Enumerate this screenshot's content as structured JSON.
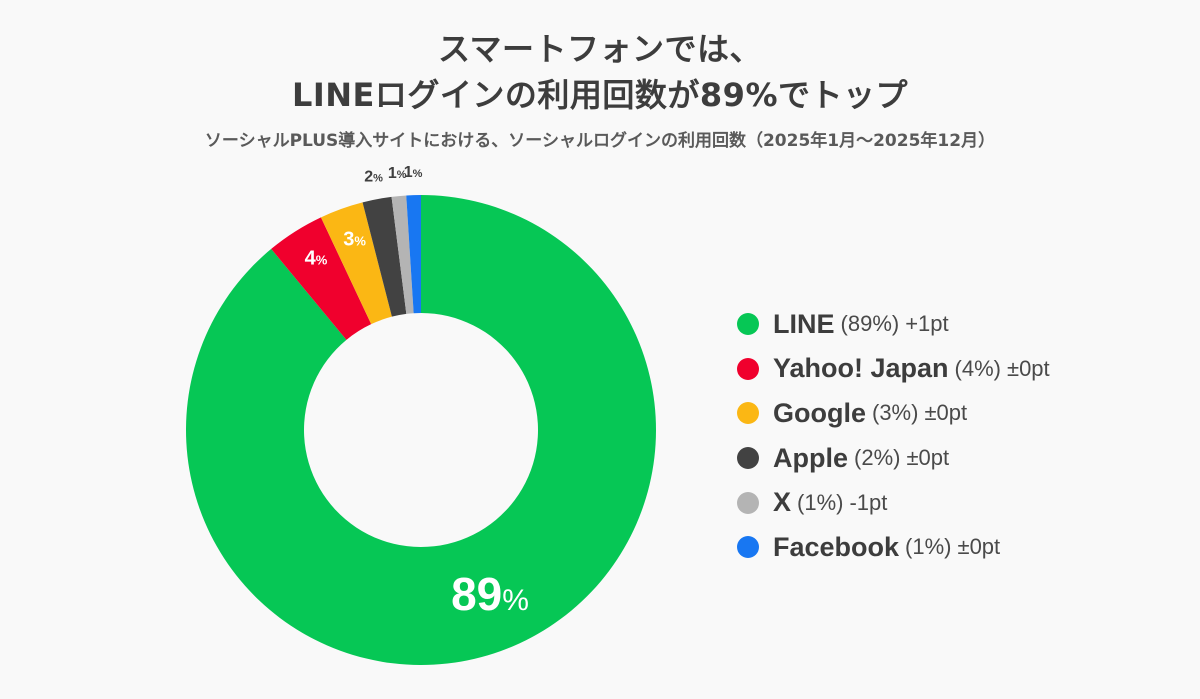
{
  "header": {
    "title_line1": "スマートフォンでは、",
    "title_line2": "LINEログインの利用回数が89%でトップ",
    "subtitle": "ソーシャルPLUS導入サイトにおける、ソーシャルログインの利用回数（2025年1月〜2025年12月）"
  },
  "legend": [
    {
      "name": "LINE",
      "pct": "(89%)",
      "delta": "+1pt",
      "color": "#06c755"
    },
    {
      "name": "Yahoo! Japan",
      "pct": "(4%)",
      "delta": "±0pt",
      "color": "#f0002d"
    },
    {
      "name": "Google",
      "pct": "(3%)",
      "delta": "±0pt",
      "color": "#fbb714"
    },
    {
      "name": "Apple",
      "pct": "(2%)",
      "delta": "±0pt",
      "color": "#424242"
    },
    {
      "name": "X",
      "pct": "(1%)",
      "delta": "-1pt",
      "color": "#b4b4b4"
    },
    {
      "name": "Facebook",
      "pct": "(1%)",
      "delta": "±0pt",
      "color": "#1877f2"
    }
  ],
  "chart_data": {
    "type": "pie",
    "subtype": "donut",
    "title": "スマートフォンでは、LINEログインの利用回数が89%でトップ",
    "subtitle": "ソーシャルPLUS導入サイトにおける、ソーシャルログインの利用回数（2025年1月〜2025年12月）",
    "categories": [
      "LINE",
      "Yahoo! Japan",
      "Google",
      "Apple",
      "X",
      "Facebook"
    ],
    "values": [
      89,
      4,
      3,
      2,
      1,
      1
    ],
    "unit": "%",
    "change_vs_previous": [
      "+1pt",
      "±0pt",
      "±0pt",
      "±0pt",
      "-1pt",
      "±0pt"
    ],
    "colors": [
      "#06c755",
      "#f0002d",
      "#fbb714",
      "#424242",
      "#b4b4b4",
      "#1877f2"
    ],
    "slice_labels": [
      "89%",
      "4%",
      "3%",
      "2%",
      "1%",
      "1%"
    ],
    "legend_position": "right"
  }
}
